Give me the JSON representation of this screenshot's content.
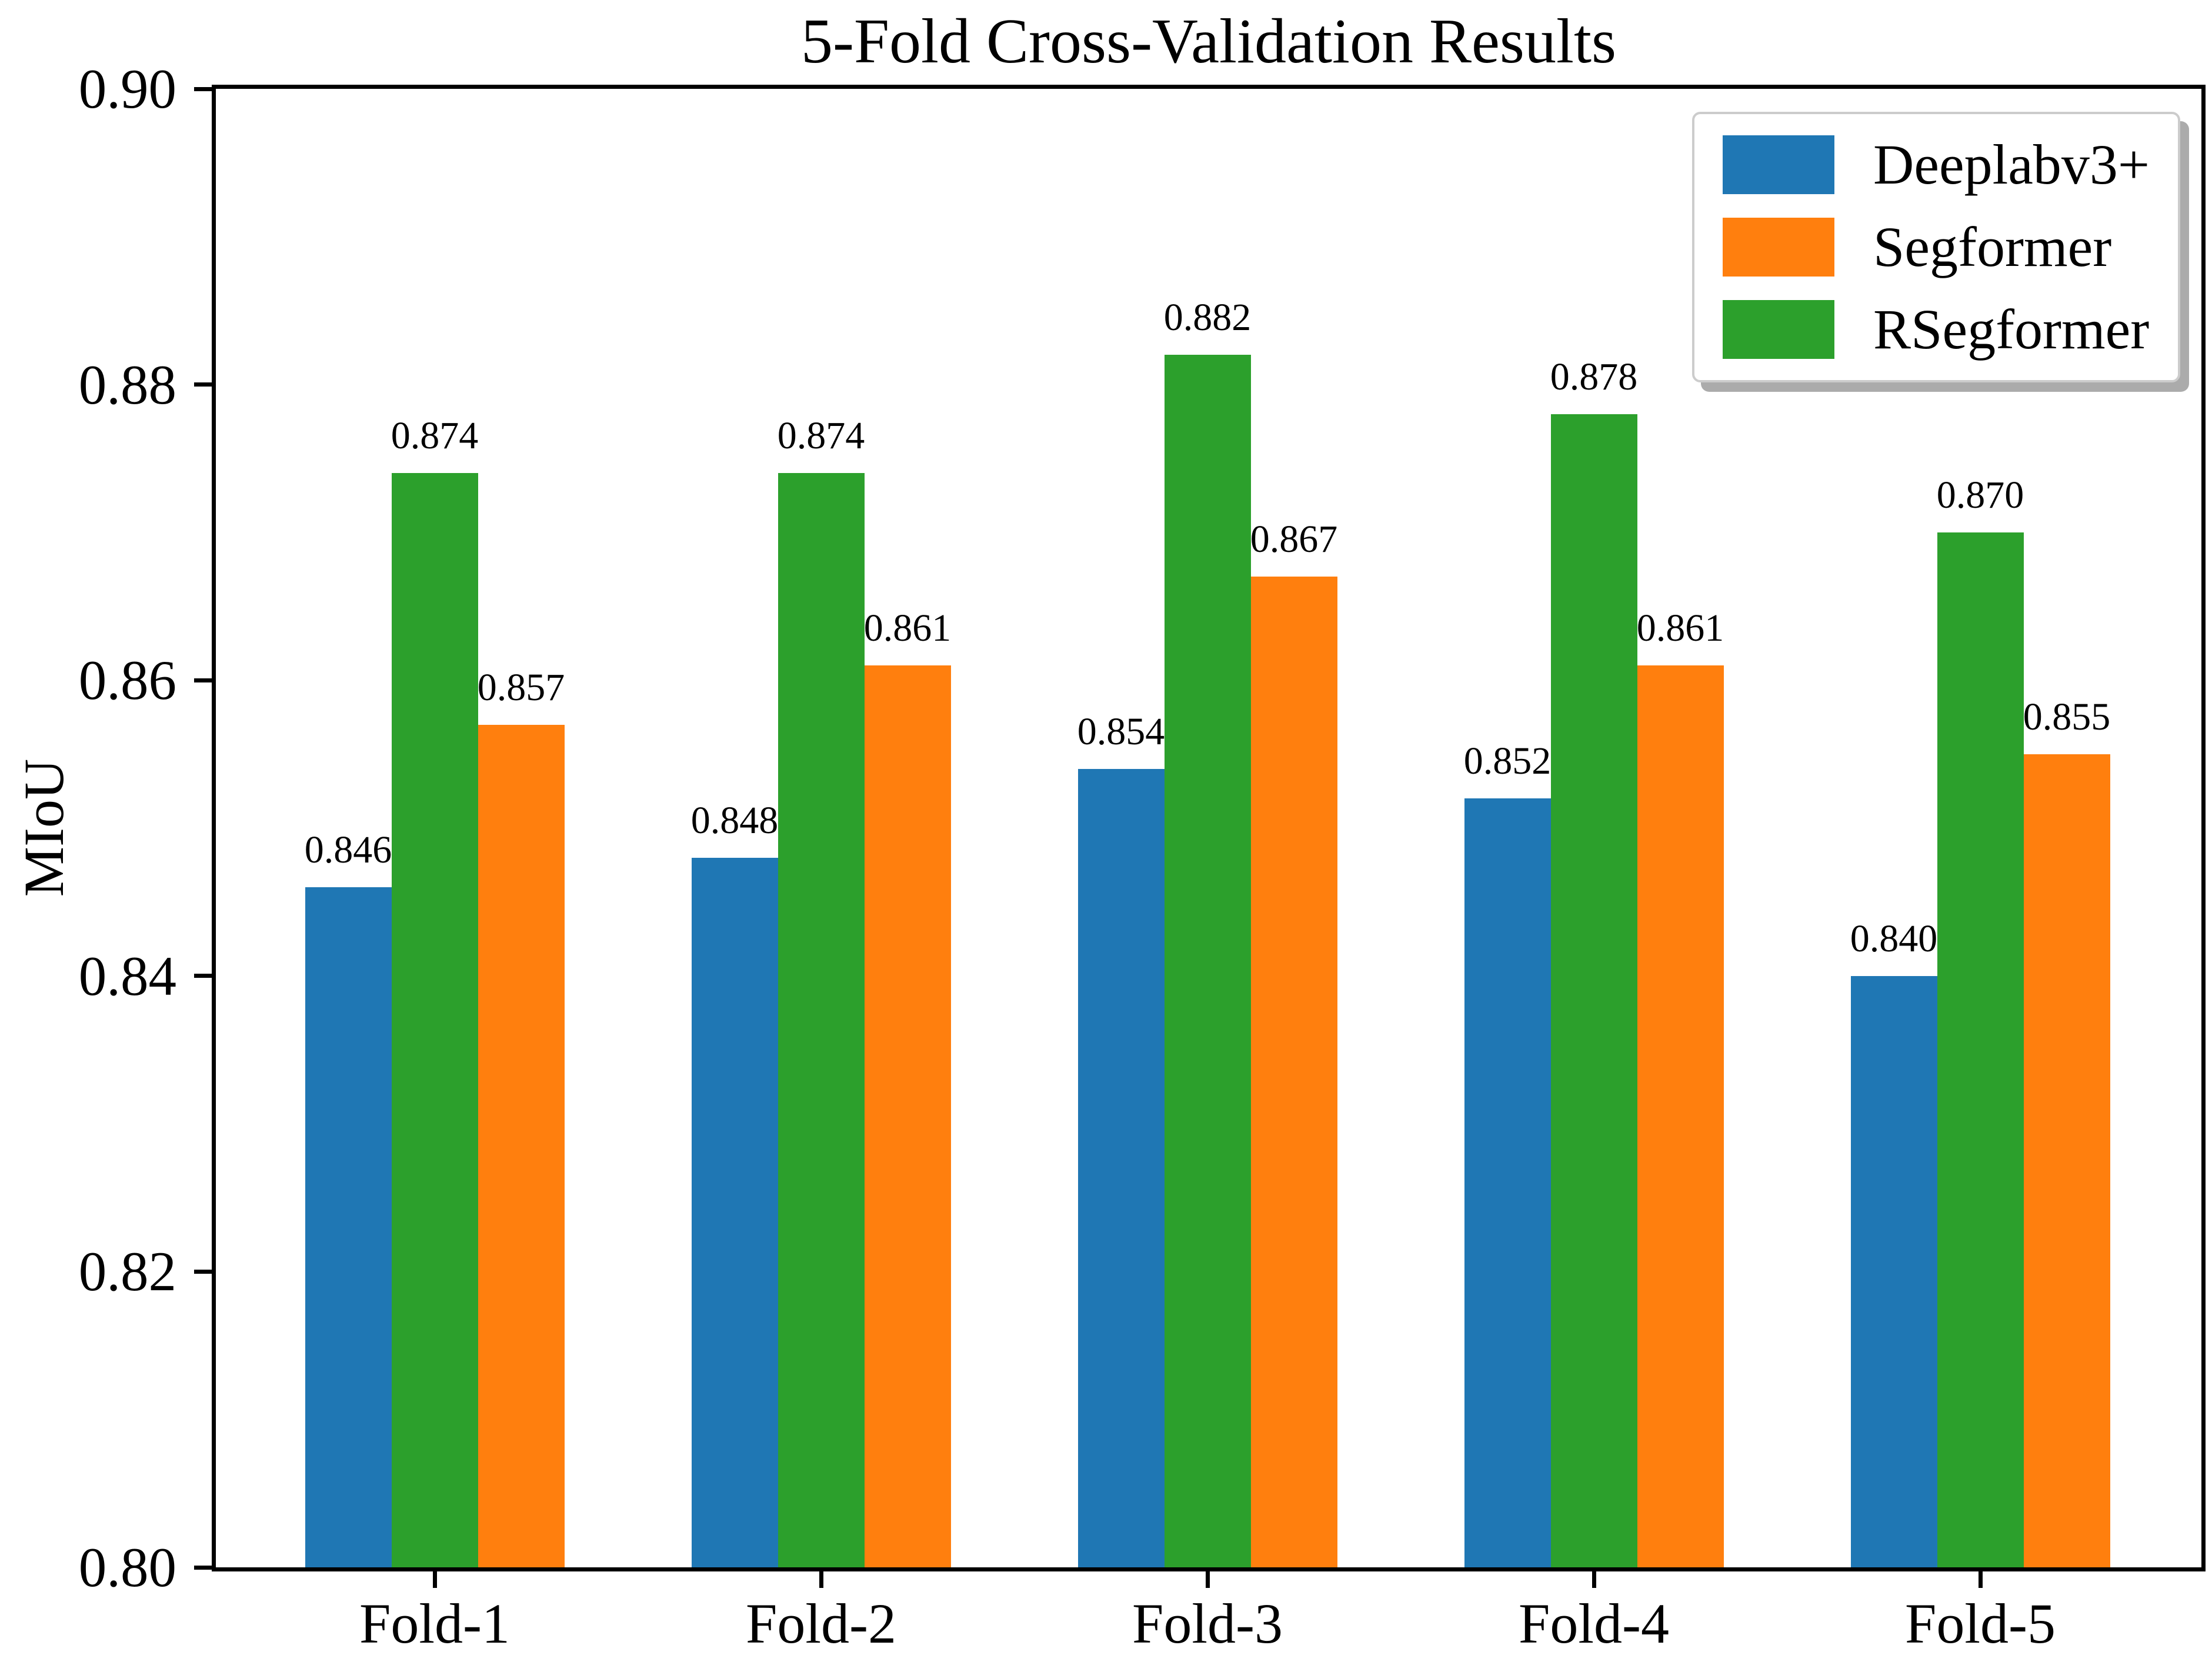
{
  "figure_title": "5-Fold Cross-Validation Results",
  "chart_data": {
    "type": "bar",
    "title": "5-Fold Cross-Validation Results",
    "xlabel": "",
    "ylabel": "MIoU",
    "categories": [
      "Fold-1",
      "Fold-2",
      "Fold-3",
      "Fold-4",
      "Fold-5"
    ],
    "series": [
      {
        "name": "Deeplabv3+",
        "color": "#1f77b4",
        "slot": 0,
        "values": [
          0.846,
          0.848,
          0.854,
          0.852,
          0.84
        ]
      },
      {
        "name": "Segformer",
        "color": "#ff7f0e",
        "slot": 2,
        "values": [
          0.857,
          0.861,
          0.867,
          0.861,
          0.855
        ]
      },
      {
        "name": "RSegformer",
        "color": "#2ca02c",
        "slot": 1,
        "values": [
          0.874,
          0.874,
          0.882,
          0.878,
          0.87
        ]
      }
    ],
    "ylim": [
      0.8,
      0.9
    ],
    "ytick_values": [
      0.9,
      0.88,
      0.86,
      0.84,
      0.82,
      0.8
    ],
    "ytick_labels": [
      "0.90",
      "0.88",
      "0.86",
      "0.84",
      "0.82",
      "0.80"
    ],
    "value_label_decimals": 3,
    "grid": false,
    "legend_position": "upper right",
    "bar_group_order_left_to_right": [
      "Deeplabv3+",
      "RSegformer",
      "Segformer"
    ]
  }
}
